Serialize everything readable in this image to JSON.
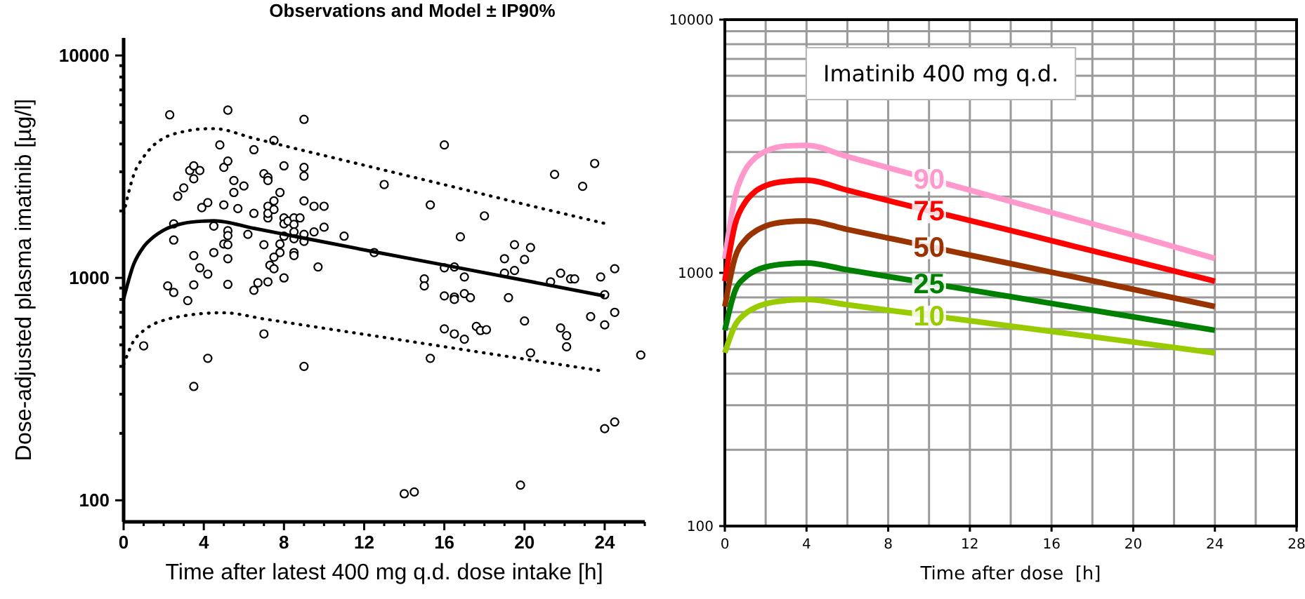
{
  "chart_data": [
    {
      "type": "scatter",
      "title": "Observations and Model ± IP90%",
      "xlabel": "Time after latest 400 mg q.d. dose intake [h]",
      "ylabel": "Dose-adjusted plasma imatinib [µg/l]",
      "log": "y",
      "xlim": [
        0,
        26
      ],
      "ylim": [
        80,
        12000
      ],
      "xticks": [
        0,
        {
          "value": 1,
          "label": null
        },
        {
          "value": 2,
          "label": null
        },
        {
          "value": 3,
          "label": null
        },
        4,
        {
          "value": 5,
          "label": null
        },
        {
          "value": 6,
          "label": null
        },
        {
          "value": 7,
          "label": null
        },
        8,
        {
          "value": 9,
          "label": null
        },
        {
          "value": 10,
          "label": null
        },
        {
          "value": 11,
          "label": null
        },
        12,
        {
          "value": 13,
          "label": null
        },
        {
          "value": 14,
          "label": null
        },
        {
          "value": 15,
          "label": null
        },
        16,
        {
          "value": 17,
          "label": null
        },
        {
          "value": 18,
          "label": null
        },
        {
          "value": 19,
          "label": null
        },
        20,
        {
          "value": 21,
          "label": null
        },
        {
          "value": 22,
          "label": null
        },
        {
          "value": 23,
          "label": null
        },
        24,
        {
          "value": 25,
          "label": null
        },
        {
          "value": 26,
          "label": null
        }
      ],
      "yticks": [
        100,
        {
          "value": 200,
          "label": null
        },
        {
          "value": 300,
          "label": null
        },
        {
          "value": 400,
          "label": null
        },
        {
          "value": 500,
          "label": null
        },
        {
          "value": 600,
          "label": null
        },
        {
          "value": 700,
          "label": null
        },
        {
          "value": 800,
          "label": null
        },
        {
          "value": 900,
          "label": null
        },
        1000,
        {
          "value": 2000,
          "label": null
        },
        {
          "value": 3000,
          "label": null
        },
        {
          "value": 4000,
          "label": null
        },
        {
          "value": 5000,
          "label": null
        },
        {
          "value": 6000,
          "label": null
        },
        {
          "value": 7000,
          "label": null
        },
        {
          "value": 8000,
          "label": null
        },
        {
          "value": 9000,
          "label": null
        },
        10000
      ],
      "series": [
        {
          "marker": "circle",
          "color": "#000000",
          "x": [
            2.3,
            5.2,
            9.0,
            4.8,
            6.5,
            7.5,
            16.0,
            3.0,
            2.7,
            3.3,
            3.5,
            3.8,
            3.5,
            5.0,
            5.2,
            5.5,
            6.0,
            5.5,
            7.0,
            7.2,
            7.2,
            7.8,
            7.5,
            8.0,
            9.0,
            9.0,
            13.0,
            21.5,
            23.5,
            22.9,
            3.9,
            4.2,
            5.0,
            5.7,
            6.5,
            7.2,
            7.2,
            7.2,
            7.5,
            9.0,
            9.5,
            10.0,
            15.3,
            18.0,
            2.5,
            4.5,
            5.2,
            5.2,
            6.2,
            8.0,
            8.0,
            8.2,
            8.5,
            8.8,
            8.5,
            8.5,
            9.0,
            9.0,
            8.5,
            8.0,
            7.8,
            9.5,
            10.0,
            11.0,
            2.5,
            5.0,
            5.2,
            7.0,
            7.8,
            7.5,
            8.5,
            8.5,
            12.5,
            4.5,
            3.5,
            5.2,
            3.8,
            7.3,
            7.5,
            9.7,
            4.2,
            8.0,
            3.5,
            5.2,
            6.7,
            7.2,
            2.2,
            2.5,
            3.2,
            6.5,
            16.0,
            16.5,
            16.8,
            17.0,
            15.0,
            15.0,
            19.0,
            19.5,
            20.3,
            20.0,
            19.5,
            19.0,
            21.8,
            21.3,
            22.3,
            22.5,
            23.8,
            24.5,
            24.0,
            16.0,
            16.5,
            16.5,
            17.0,
            17.3,
            19.2,
            24.5,
            23.3,
            24.0,
            20.0,
            21.8,
            22.1,
            22.1,
            20.3,
            16.0,
            16.5,
            17.0,
            17.6,
            17.8,
            18.1,
            7.0,
            1.0,
            4.2,
            9.0,
            15.3,
            3.5,
            25.8,
            24.5,
            24.0,
            19.8,
            14.0,
            14.5
          ],
          "values": [
            5410,
            5680,
            5160,
            3960,
            3770,
            4150,
            3960,
            2540,
            2330,
            3040,
            3190,
            3040,
            2790,
            3140,
            3350,
            2740,
            2590,
            2420,
            2940,
            2830,
            2740,
            2420,
            2220,
            3190,
            3140,
            2870,
            2630,
            2920,
            3270,
            2580,
            2070,
            2180,
            2130,
            2050,
            1950,
            2100,
            1860,
            1950,
            2030,
            2220,
            2100,
            2100,
            2130,
            1900,
            1750,
            1710,
            1630,
            1550,
            1570,
            1860,
            1750,
            1800,
            1860,
            1860,
            1740,
            1610,
            1570,
            1460,
            1500,
            1540,
            1420,
            1610,
            1690,
            1540,
            1480,
            1420,
            1410,
            1410,
            1300,
            1240,
            1300,
            1260,
            1300,
            1300,
            1260,
            1220,
            1110,
            1140,
            1100,
            1120,
            1040,
            1000,
            930,
            935,
            950,
            960,
            920,
            860,
            790,
            880,
            1110,
            1120,
            1530,
            1010,
            990,
            920,
            1220,
            1410,
            1370,
            1210,
            1080,
            1050,
            1050,
            960,
            990,
            990,
            1010,
            1100,
            840,
            830,
            820,
            800,
            850,
            815,
            815,
            700,
            670,
            615,
            640,
            595,
            550,
            490,
            460,
            590,
            560,
            530,
            605,
            580,
            585,
            560,
            495,
            435,
            400,
            435,
            325,
            450,
            225,
            210,
            117,
            107,
            109
          ]
        },
        {
          "type": "line",
          "line_style": "solid",
          "color": "#000000",
          "x": [
            0,
            0.5,
            1,
            1.5,
            2,
            3,
            4,
            4.5,
            6.5,
            8.5,
            12.5,
            16.5,
            20.5,
            24
          ],
          "values": [
            805,
            1150,
            1380,
            1530,
            1640,
            1760,
            1800,
            1807,
            1670,
            1540,
            1310,
            1120,
            955,
            829
          ]
        },
        {
          "type": "line",
          "line_style": "dotted",
          "color": "#000000",
          "x": [
            0,
            0.5,
            1,
            1.5,
            2,
            3,
            4,
            4.5,
            6.5,
            8.5,
            12.5,
            16.5,
            20.5,
            24
          ],
          "values": [
            1941,
            2900,
            3500,
            3950,
            4250,
            4550,
            4680,
            4690,
            4240,
            3830,
            3130,
            2560,
            2090,
            1758
          ]
        },
        {
          "type": "line",
          "line_style": "dotted",
          "color": "#000000",
          "x": [
            0,
            0.5,
            1,
            1.5,
            2,
            3,
            4,
            5,
            7,
            9,
            13,
            17,
            21,
            24
          ],
          "values": [
            408,
            520,
            580,
            620,
            645,
            675,
            692,
            697,
            654,
            613,
            540,
            475,
            418,
            380
          ]
        }
      ]
    },
    {
      "type": "line",
      "xlabel": "Time after dose  [h]",
      "log": "y",
      "grid": true,
      "xlim": [
        0,
        28
      ],
      "ylim": [
        100,
        10000
      ],
      "annotations": [
        "Imatinib 400 mg q.d."
      ],
      "xticks": [
        0,
        {
          "value": 2,
          "label": null
        },
        4,
        {
          "value": 6,
          "label": null
        },
        8,
        {
          "value": 10,
          "label": null
        },
        12,
        {
          "value": 14,
          "label": null
        },
        16,
        {
          "value": 18,
          "label": null
        },
        20,
        {
          "value": 22,
          "label": null
        },
        24,
        {
          "value": 26,
          "label": null
        },
        28
      ],
      "yticks": [
        100,
        {
          "value": 200,
          "label": null
        },
        {
          "value": 300,
          "label": null
        },
        {
          "value": 400,
          "label": null
        },
        {
          "value": 500,
          "label": null
        },
        {
          "value": 600,
          "label": null
        },
        {
          "value": 700,
          "label": null
        },
        {
          "value": 800,
          "label": null
        },
        {
          "value": 900,
          "label": null
        },
        1000,
        {
          "value": 2000,
          "label": null
        },
        {
          "value": 3000,
          "label": null
        },
        {
          "value": 4000,
          "label": null
        },
        {
          "value": 5000,
          "label": null
        },
        {
          "value": 6000,
          "label": null
        },
        {
          "value": 7000,
          "label": null
        },
        {
          "value": 8000,
          "label": null
        },
        {
          "value": 9000,
          "label": null
        },
        10000
      ],
      "x": [
        0,
        0.5,
        1,
        1.5,
        2,
        3,
        4,
        6,
        8,
        10,
        12,
        16,
        20,
        24
      ],
      "series": [
        {
          "name": "90",
          "color": "#ff99cc",
          "values": [
            1136,
            2000,
            2550,
            2850,
            3020,
            3170,
            3190,
            2880,
            2600,
            2350,
            2120,
            1730,
            1410,
            1140
          ]
        },
        {
          "name": "75",
          "color": "#ff0000",
          "values": [
            927,
            1550,
            1900,
            2100,
            2210,
            2300,
            2320,
            2120,
            1930,
            1760,
            1610,
            1340,
            1115,
            927
          ]
        },
        {
          "name": "50",
          "color": "#993300",
          "values": [
            736,
            1150,
            1350,
            1460,
            1530,
            1590,
            1604,
            1484,
            1373,
            1270,
            1175,
            1006,
            861,
            736
          ]
        },
        {
          "name": "25",
          "color": "#008000",
          "values": [
            593,
            850,
            960,
            1020,
            1055,
            1085,
            1093,
            1028,
            967,
            910,
            856,
            757,
            670,
            593
          ]
        },
        {
          "name": "10",
          "color": "#99cc00",
          "values": [
            483,
            620,
            690,
            730,
            755,
            778,
            785,
            748,
            712,
            679,
            647,
            587,
            533,
            483
          ]
        }
      ]
    }
  ]
}
